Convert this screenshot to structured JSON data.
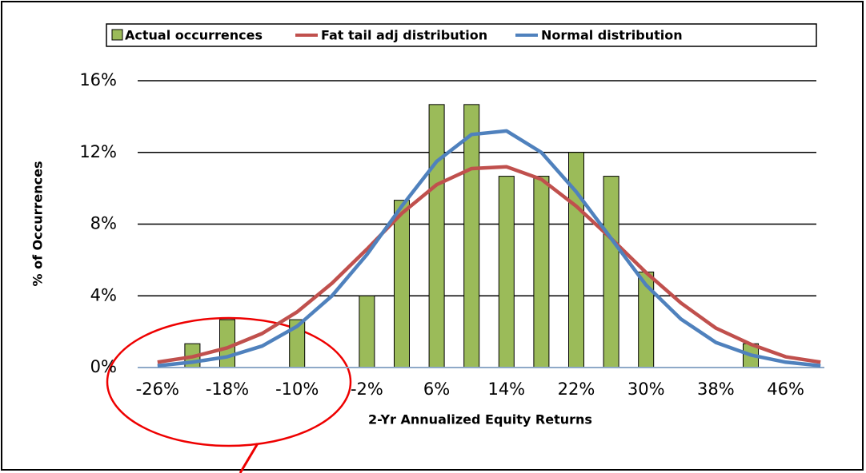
{
  "chart_data": {
    "type": "bar-line",
    "x_label": "2-Yr Annualized Equity Returns",
    "y_label": "% of Occurrences",
    "categories": [
      "-26%",
      null,
      "-18%",
      null,
      "-10%",
      null,
      "-2%",
      null,
      "6%",
      null,
      "14%",
      null,
      "22%",
      null,
      "30%",
      null,
      "38%",
      null,
      "46%",
      null
    ],
    "series": [
      {
        "name": "Actual occurrences",
        "type": "bar",
        "color": "#9bbb59",
        "values": [
          0,
          1.33,
          2.67,
          0,
          2.67,
          0,
          4,
          9.33,
          14.67,
          14.67,
          10.67,
          10.67,
          12,
          10.67,
          5.33,
          0,
          0,
          1.33,
          0,
          0
        ]
      },
      {
        "name": "Fat tail adj distribution",
        "type": "line",
        "color": "#c0504d",
        "values": [
          0.3,
          0.6,
          1.1,
          1.9,
          3.1,
          4.7,
          6.6,
          8.6,
          10.2,
          11.1,
          11.2,
          10.5,
          9.0,
          7.2,
          5.3,
          3.6,
          2.2,
          1.3,
          0.6,
          0.3
        ]
      },
      {
        "name": "Normal distribution",
        "type": "line",
        "color": "#4f81bd",
        "values": [
          0.1,
          0.3,
          0.6,
          1.2,
          2.3,
          4.0,
          6.3,
          9.0,
          11.5,
          13.0,
          13.2,
          12.0,
          9.8,
          7.2,
          4.6,
          2.7,
          1.4,
          0.7,
          0.3,
          0.1
        ]
      }
    ],
    "ylim": [
      0,
      16
    ],
    "yticks": [
      {
        "value": 0,
        "label": "0%"
      },
      {
        "value": 4,
        "label": "4%"
      },
      {
        "value": 8,
        "label": "8%"
      },
      {
        "value": 12,
        "label": "12%"
      },
      {
        "value": 16,
        "label": "16%"
      }
    ],
    "grid": true
  }
}
